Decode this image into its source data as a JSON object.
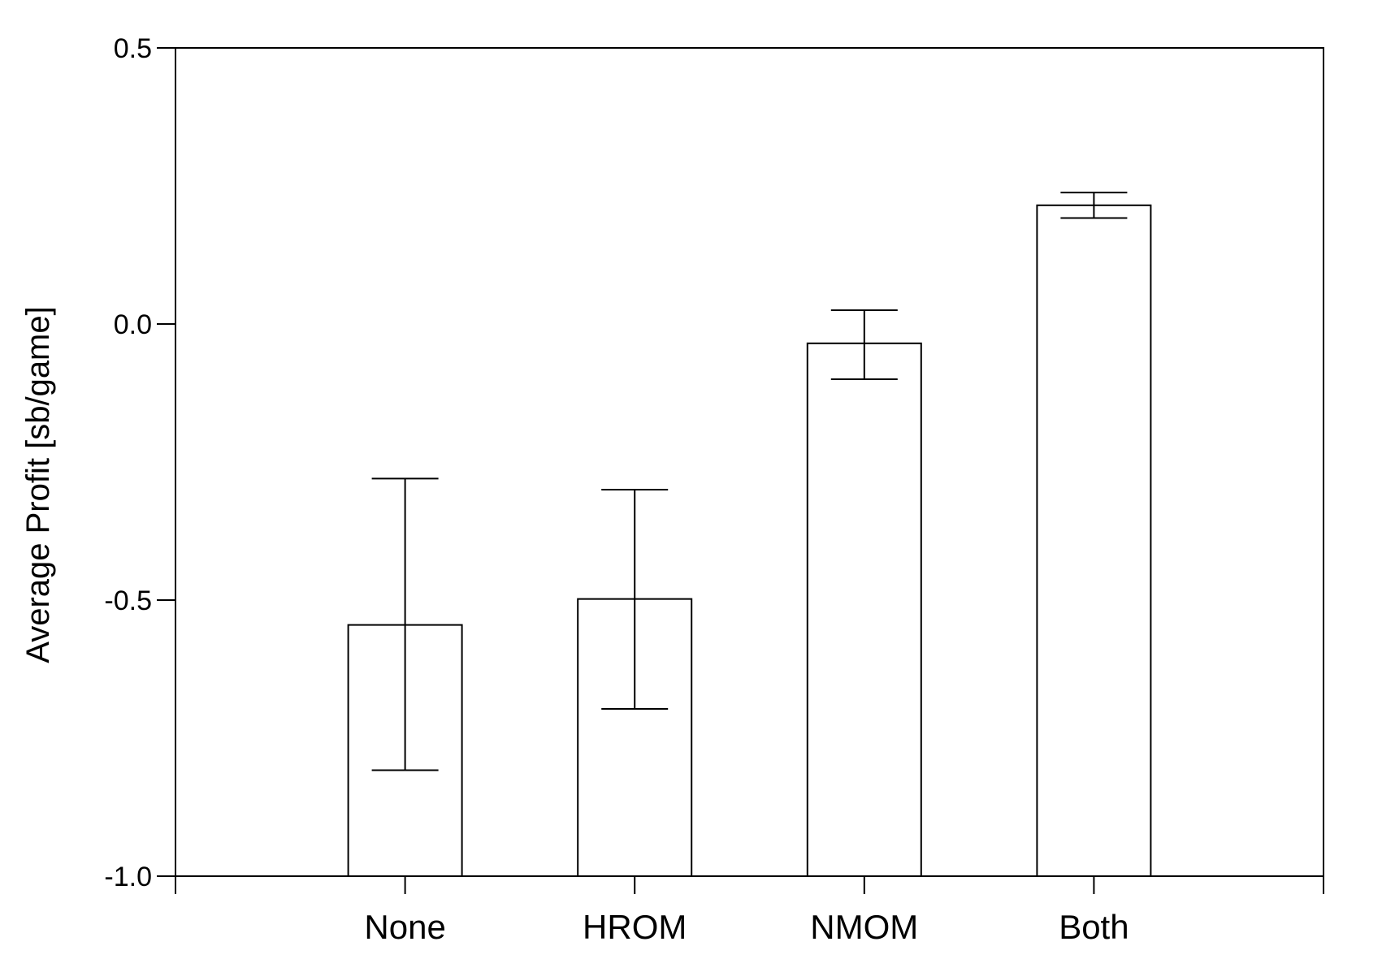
{
  "chart_data": {
    "type": "bar",
    "title": "",
    "xlabel": "",
    "ylabel": "Average Profit [sb/game]",
    "categories": [
      "None",
      "HROM",
      "NMOM",
      "Both"
    ],
    "values": [
      -0.545,
      -0.498,
      -0.035,
      0.215
    ],
    "error_upper": [
      -0.28,
      -0.3,
      0.025,
      0.238
    ],
    "error_lower": [
      -0.808,
      -0.697,
      -0.1,
      0.192
    ],
    "ylim": [
      -1.0,
      0.5
    ],
    "yticks": [
      -1.0,
      -0.5,
      0.0,
      0.5
    ],
    "ytick_labels": [
      "-1.0",
      "-0.5",
      "0.0",
      "0.5"
    ],
    "grid": false,
    "legend": "none",
    "colors": {
      "bar_fill": "#ffffff",
      "bar_stroke": "#000000",
      "axis": "#000000"
    }
  }
}
